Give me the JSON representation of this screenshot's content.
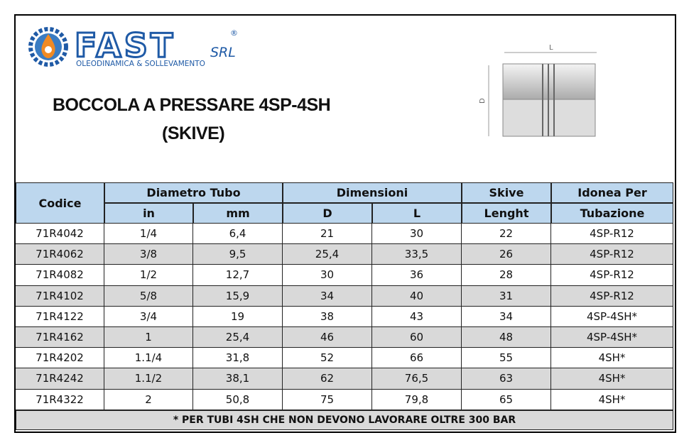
{
  "header": {
    "logo": {
      "brand": "FAST",
      "suffix": "SRL",
      "registered": "®",
      "tagline": "OLEODINAMICA & SOLLEVAMENTO"
    },
    "title": "BOCCOLA A PRESSARE 4SP-4SH",
    "subtitle": "(SKIVE)",
    "drawing": {
      "length_label": "L",
      "diameter_label": "D"
    }
  },
  "table": {
    "header": {
      "codice": "Codice",
      "diametro": "Diametro Tubo",
      "dimensioni": "Dimensioni",
      "skive": "Skive",
      "idonea": "Idonea Per",
      "in": "in",
      "mm": "mm",
      "d": "D",
      "l": "L",
      "lenght": "Lenght",
      "tubazione": "Tubazione"
    },
    "rows": [
      [
        "71R4042",
        "1/4",
        "6,4",
        "21",
        "30",
        "22",
        "4SP-R12"
      ],
      [
        "71R4062",
        "3/8",
        "9,5",
        "25,4",
        "33,5",
        "26",
        "4SP-R12"
      ],
      [
        "71R4082",
        "1/2",
        "12,7",
        "30",
        "36",
        "28",
        "4SP-R12"
      ],
      [
        "71R4102",
        "5/8",
        "15,9",
        "34",
        "40",
        "31",
        "4SP-R12"
      ],
      [
        "71R4122",
        "3/4",
        "19",
        "38",
        "43",
        "34",
        "4SP-4SH*"
      ],
      [
        "71R4162",
        "1",
        "25,4",
        "46",
        "60",
        "48",
        "4SP-4SH*"
      ],
      [
        "71R4202",
        "1.1/4",
        "31,8",
        "52",
        "66",
        "55",
        "4SH*"
      ],
      [
        "71R4242",
        "1.1/2",
        "38,1",
        "62",
        "76,5",
        "63",
        "4SH*"
      ],
      [
        "71R4322",
        "2",
        "50,8",
        "75",
        "79,8",
        "65",
        "4SH*"
      ]
    ],
    "footer": "* PER TUBI 4SH CHE NON DEVONO LAVORARE OLTRE  300 BAR"
  }
}
